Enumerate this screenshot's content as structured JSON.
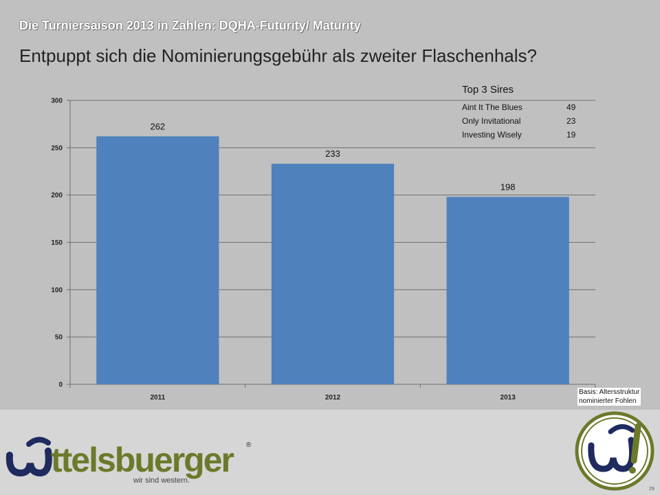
{
  "header": {
    "subtitle": "Die Turniersaison 2013 in Zahlen: DQHA-Futurity/ Maturity",
    "title": "Entpuppt sich die Nominierungsgebühr als zweiter Flaschenhals?"
  },
  "chart_data": {
    "type": "bar",
    "categories": [
      "2011",
      "2012",
      "2013"
    ],
    "values": [
      262,
      233,
      198
    ],
    "data_labels": [
      "262",
      "233",
      "198"
    ],
    "ylim": [
      0,
      300
    ],
    "yticks": [
      "0",
      "50",
      "100",
      "150",
      "200",
      "250",
      "300"
    ],
    "grid": true,
    "bar_color": "#4f81bd"
  },
  "legend": {
    "title": "Top 3 Sires",
    "rows": [
      {
        "name": "Aint It The Blues",
        "value": "49"
      },
      {
        "name": "Only Invitational",
        "value": "23"
      },
      {
        "name": "Investing Wisely",
        "value": "19"
      }
    ]
  },
  "basis": {
    "line1": "Basis:  Altersstruktur",
    "line2": "nominierter Fohlen"
  },
  "footer": {
    "brand_name": "ttelsbuerger",
    "tagline": "wir sind western.",
    "registered_mark": "®",
    "page_number": "29",
    "brand_color": "#6b7a2a",
    "brand_dark": "#1f2a5e"
  }
}
